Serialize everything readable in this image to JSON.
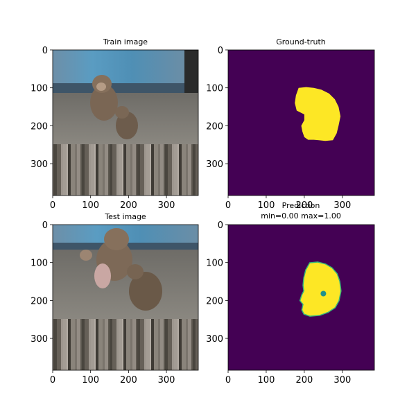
{
  "chart_data": [
    {
      "type": "image",
      "title": "Train image",
      "xlim": [
        0,
        384
      ],
      "ylim": [
        384,
        0
      ],
      "x_ticks": [
        0,
        100,
        200,
        300
      ],
      "y_ticks": [
        0,
        100,
        200,
        300
      ],
      "content": "photo: monkey and baby monkey on stone ground, blue wooden board behind"
    },
    {
      "type": "heatmap",
      "title": "Ground-truth",
      "xlim": [
        0,
        384
      ],
      "ylim": [
        384,
        0
      ],
      "x_ticks": [
        0,
        100,
        200,
        300
      ],
      "y_ticks": [
        0,
        100,
        200,
        300
      ],
      "colormap": "viridis",
      "background_value": 0,
      "mask_value": 1,
      "mask_outline": [
        [
          185,
          100
        ],
        [
          205,
          98
        ],
        [
          225,
          100
        ],
        [
          245,
          105
        ],
        [
          265,
          115
        ],
        [
          280,
          130
        ],
        [
          290,
          150
        ],
        [
          295,
          175
        ],
        [
          290,
          200
        ],
        [
          285,
          220
        ],
        [
          275,
          238
        ],
        [
          255,
          240
        ],
        [
          238,
          238
        ],
        [
          225,
          237
        ],
        [
          210,
          237
        ],
        [
          200,
          230
        ],
        [
          195,
          215
        ],
        [
          192,
          200
        ],
        [
          200,
          185
        ],
        [
          200,
          170
        ],
        [
          190,
          165
        ],
        [
          180,
          160
        ],
        [
          175,
          140
        ],
        [
          178,
          120
        ]
      ]
    },
    {
      "type": "image",
      "title": "Test image",
      "xlim": [
        0,
        384
      ],
      "ylim": [
        384,
        0
      ],
      "x_ticks": [
        0,
        100,
        200,
        300
      ],
      "y_ticks": [
        0,
        100,
        200,
        300
      ],
      "content": "photo: three monkeys on stone ground, blue wooden board behind"
    },
    {
      "type": "heatmap",
      "title": "Prediction",
      "subtitle": "min=0.00 max=1.00",
      "xlim": [
        0,
        384
      ],
      "ylim": [
        384,
        0
      ],
      "x_ticks": [
        0,
        100,
        200,
        300
      ],
      "y_ticks": [
        0,
        100,
        200,
        300
      ],
      "colormap": "viridis",
      "min": 0.0,
      "max": 1.0,
      "mask_outline": [
        [
          215,
          102
        ],
        [
          235,
          100
        ],
        [
          255,
          105
        ],
        [
          272,
          115
        ],
        [
          285,
          130
        ],
        [
          292,
          150
        ],
        [
          295,
          175
        ],
        [
          290,
          200
        ],
        [
          280,
          218
        ],
        [
          262,
          230
        ],
        [
          240,
          238
        ],
        [
          215,
          240
        ],
        [
          200,
          235
        ],
        [
          195,
          225
        ],
        [
          198,
          210
        ],
        [
          190,
          200
        ],
        [
          195,
          185
        ],
        [
          200,
          175
        ],
        [
          198,
          160
        ],
        [
          200,
          140
        ],
        [
          205,
          120
        ]
      ]
    }
  ],
  "colors": {
    "viridis_low": "#440154",
    "viridis_high": "#fde725",
    "viridis_mid": "#35b779"
  }
}
